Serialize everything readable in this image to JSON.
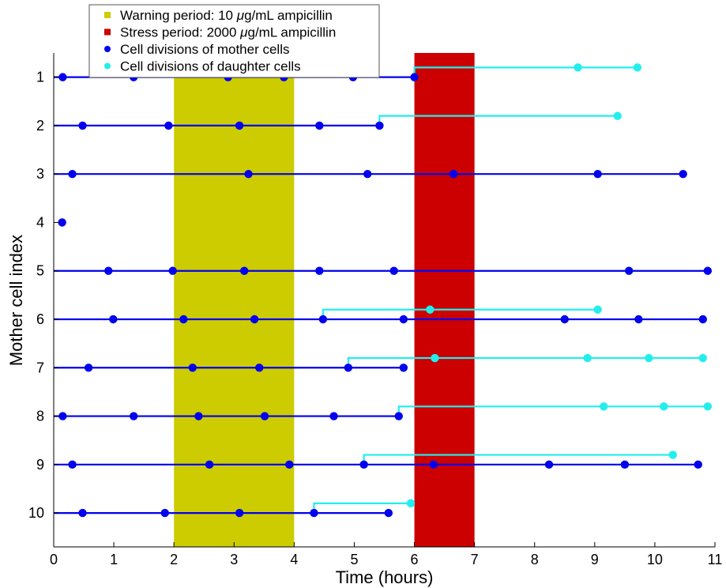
{
  "chart_data": {
    "type": "scatter",
    "title": "",
    "xlabel": "Time (hours)",
    "ylabel": "Mother cell index",
    "xlim": [
      0,
      11
    ],
    "ylim": [
      0.5,
      10.7
    ],
    "y_reversed": true,
    "x_ticks": [
      "0",
      "1",
      "2",
      "3",
      "4",
      "5",
      "6",
      "7",
      "8",
      "9",
      "10",
      "11"
    ],
    "y_ticks": [
      "1",
      "2",
      "3",
      "4",
      "5",
      "6",
      "7",
      "8",
      "9",
      "10"
    ],
    "grid": false,
    "legend_position": "top-left",
    "colors": {
      "warning": "#cccc00",
      "stress": "#cc0000",
      "mother": "#0000ee",
      "daughter": "#22eeee"
    },
    "legend": [
      {
        "key": "warning",
        "marker": "square",
        "text_before": "Warning period: 10 ",
        "mu": "μ",
        "text_after": "g/mL ampicillin"
      },
      {
        "key": "stress",
        "marker": "square",
        "text_before": "Stress period: 2000 ",
        "mu": "μ",
        "text_after": "g/mL ampicillin"
      },
      {
        "key": "mother",
        "marker": "circle",
        "text_before": "Cell divisions of mother cells",
        "mu": "",
        "text_after": ""
      },
      {
        "key": "daughter",
        "marker": "circle",
        "text_before": "Cell divisions of daughter cells",
        "mu": "",
        "text_after": ""
      }
    ],
    "periods": [
      {
        "name": "warning",
        "start": 2.0,
        "end": 4.0
      },
      {
        "name": "stress",
        "start": 6.0,
        "end": 7.0
      }
    ],
    "mothers": [
      {
        "index": 1,
        "divisions": [
          0.15,
          1.33,
          2.9,
          3.83,
          4.98,
          6.0
        ]
      },
      {
        "index": 2,
        "divisions": [
          0.48,
          1.91,
          3.09,
          4.42,
          5.42
        ]
      },
      {
        "index": 3,
        "divisions": [
          0.31,
          3.24,
          5.22,
          6.65,
          9.05,
          10.47
        ]
      },
      {
        "index": 4,
        "divisions": [
          0.14
        ]
      },
      {
        "index": 5,
        "divisions": [
          0.91,
          1.98,
          3.17,
          4.42,
          5.66,
          9.57,
          10.88
        ]
      },
      {
        "index": 6,
        "divisions": [
          0.99,
          2.16,
          3.34,
          4.48,
          5.82,
          8.5,
          9.73,
          10.8
        ]
      },
      {
        "index": 7,
        "divisions": [
          0.58,
          2.31,
          3.42,
          4.9,
          5.82
        ]
      },
      {
        "index": 8,
        "divisions": [
          0.15,
          1.33,
          2.41,
          3.51,
          4.66,
          5.74
        ]
      },
      {
        "index": 9,
        "divisions": [
          0.31,
          2.59,
          3.92,
          5.16,
          6.32,
          8.24,
          9.5,
          10.72
        ]
      },
      {
        "index": 10,
        "divisions": [
          0.48,
          1.85,
          3.09,
          4.33,
          5.57
        ]
      }
    ],
    "daughters": [
      {
        "mother": 1,
        "born_at": 6.0,
        "y": 0.8,
        "divisions": [
          8.72,
          9.71
        ]
      },
      {
        "mother": 2,
        "born_at": 5.42,
        "y": 1.8,
        "divisions": [
          9.38
        ]
      },
      {
        "mother": 6,
        "born_at": 4.48,
        "y": 5.8,
        "divisions": [
          6.26,
          9.05
        ]
      },
      {
        "mother": 7,
        "born_at": 4.9,
        "y": 6.8,
        "divisions": [
          6.34,
          8.88,
          9.9,
          10.8
        ]
      },
      {
        "mother": 8,
        "born_at": 5.74,
        "y": 7.8,
        "divisions": [
          9.15,
          10.15,
          10.88
        ]
      },
      {
        "mother": 9,
        "born_at": 5.16,
        "y": 8.8,
        "divisions": [
          10.3
        ]
      },
      {
        "mother": 10,
        "born_at": 4.33,
        "y": 9.8,
        "divisions": [
          5.94
        ]
      }
    ]
  }
}
